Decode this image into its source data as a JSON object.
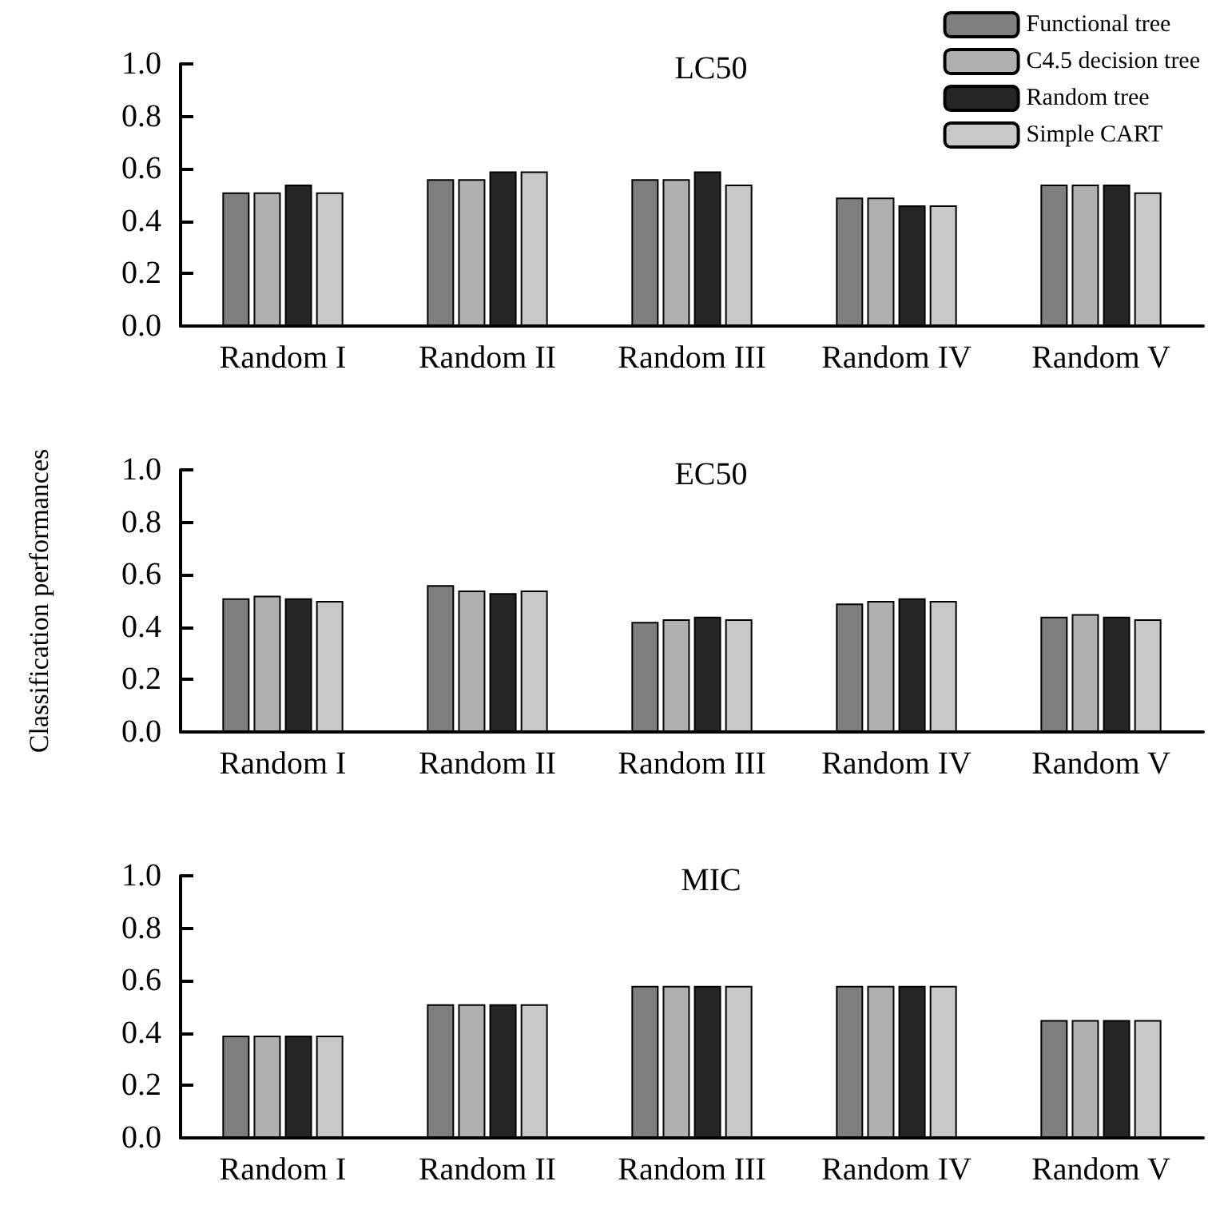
{
  "chart_data": [
    {
      "type": "bar",
      "title": "LC50",
      "categories": [
        "Random I",
        "Random II",
        "Random III",
        "Random IV",
        "Random V"
      ],
      "series": [
        {
          "name": "Functional tree",
          "color": "#7f7f7f",
          "values": [
            0.51,
            0.56,
            0.56,
            0.49,
            0.54
          ]
        },
        {
          "name": "C4.5 decision tree",
          "color": "#b0b0b0",
          "values": [
            0.51,
            0.56,
            0.56,
            0.49,
            0.54
          ]
        },
        {
          "name": "Random tree",
          "color": "#262626",
          "values": [
            0.54,
            0.59,
            0.59,
            0.46,
            0.54
          ]
        },
        {
          "name": "Simple CART",
          "color": "#c8c8c8",
          "values": [
            0.51,
            0.59,
            0.54,
            0.46,
            0.51
          ]
        }
      ],
      "ylim": [
        0,
        1
      ],
      "yticks": [
        {
          "value": 0,
          "label": "0.0"
        },
        {
          "value": 0.2,
          "label": "0.2"
        },
        {
          "value": 0.4,
          "label": "0.4"
        },
        {
          "value": 0.6,
          "label": "0.6"
        },
        {
          "value": 0.8,
          "label": "0.8"
        },
        {
          "value": 1,
          "label": "1.0"
        }
      ],
      "grid": false,
      "legend": "top right"
    },
    {
      "type": "bar",
      "title": "EC50",
      "ylabel": "Classification performances",
      "categories": [
        "Random I",
        "Random II",
        "Random III",
        "Random IV",
        "Random V"
      ],
      "series": [
        {
          "color": "#7f7f7f",
          "values": [
            0.51,
            0.56,
            0.42,
            0.49,
            0.44
          ]
        },
        {
          "color": "#b0b0b0",
          "values": [
            0.52,
            0.54,
            0.43,
            0.5,
            0.45
          ]
        },
        {
          "color": "#262626",
          "values": [
            0.51,
            0.53,
            0.44,
            0.51,
            0.44
          ]
        },
        {
          "color": "#c8c8c8",
          "values": [
            0.5,
            0.54,
            0.43,
            0.5,
            0.43
          ]
        }
      ],
      "ylim": [
        0,
        1
      ],
      "yticks": [
        {
          "value": 0,
          "label": "0.0"
        },
        {
          "value": 0.2,
          "label": "0.2"
        },
        {
          "value": 0.4,
          "label": "0.4"
        },
        {
          "value": 0.6,
          "label": "0.6"
        },
        {
          "value": 0.8,
          "label": "0.8"
        },
        {
          "value": 1,
          "label": "1.0"
        }
      ],
      "grid": false
    },
    {
      "type": "bar",
      "title": "MIC",
      "categories": [
        "Random I",
        "Random II",
        "Random III",
        "Random IV",
        "Random V"
      ],
      "series": [
        {
          "color": "#7f7f7f",
          "values": [
            0.39,
            0.51,
            0.58,
            0.58,
            0.45
          ]
        },
        {
          "color": "#b0b0b0",
          "values": [
            0.39,
            0.51,
            0.58,
            0.58,
            0.45
          ]
        },
        {
          "color": "#262626",
          "values": [
            0.39,
            0.51,
            0.58,
            0.58,
            0.45
          ]
        },
        {
          "color": "#c8c8c8",
          "values": [
            0.39,
            0.51,
            0.58,
            0.58,
            0.45
          ]
        }
      ],
      "ylim": [
        0,
        1
      ],
      "yticks": [
        {
          "value": 0,
          "label": "0.0"
        },
        {
          "value": 0.2,
          "label": "0.2"
        },
        {
          "value": 0.4,
          "label": "0.4"
        },
        {
          "value": 0.6,
          "label": "0.6"
        },
        {
          "value": 0.8,
          "label": "0.8"
        },
        {
          "value": 1,
          "label": "1.0"
        }
      ],
      "grid": false
    }
  ]
}
